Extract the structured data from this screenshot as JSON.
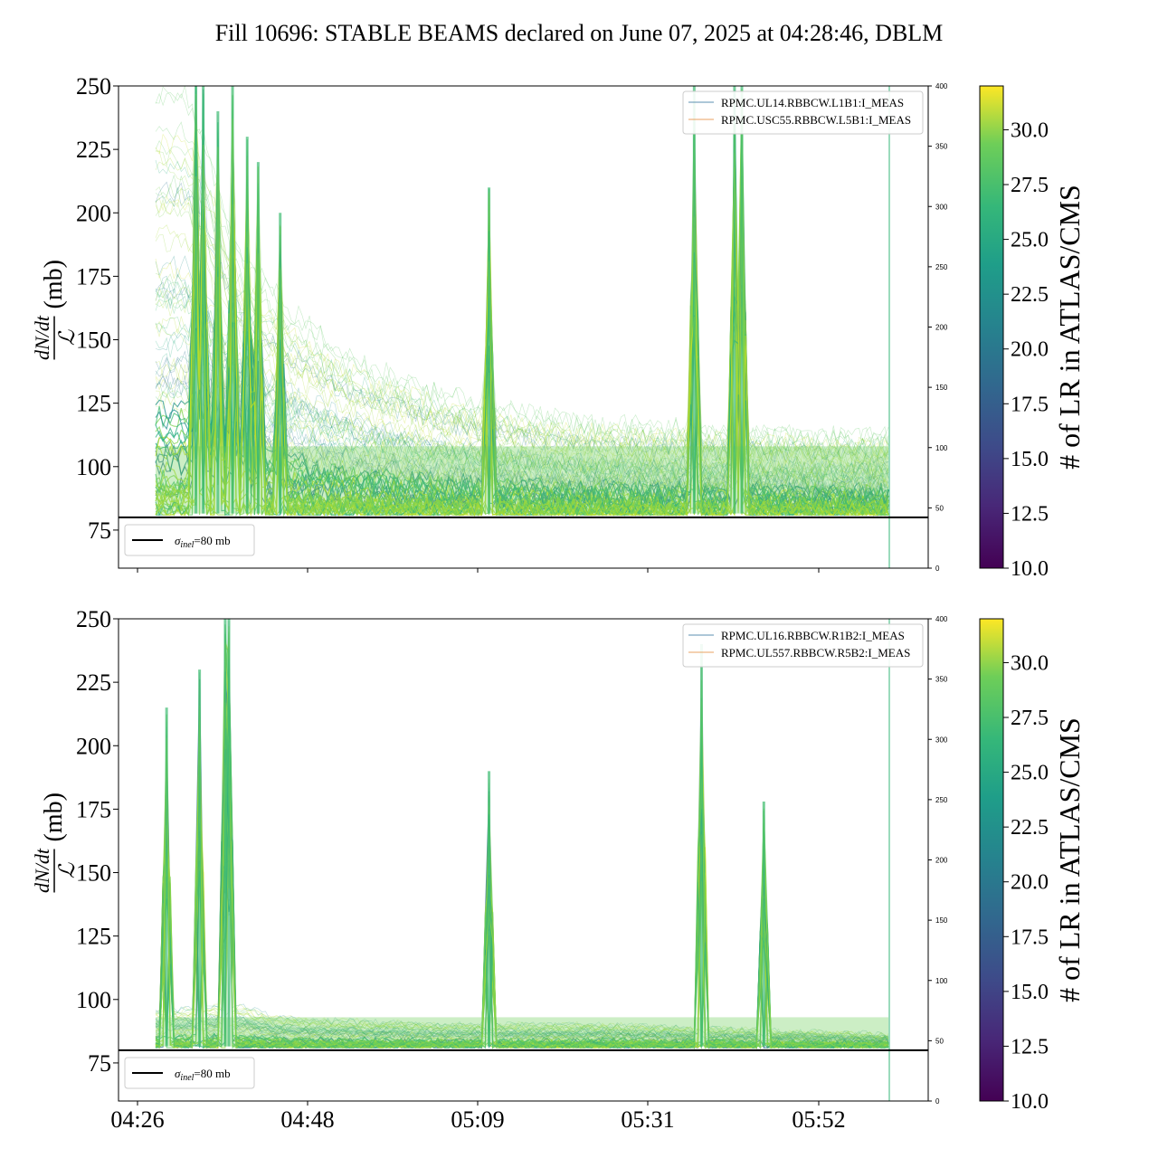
{
  "title": "Fill 10696: STABLE BEAMS declared on June 07, 2025 at 04:28:46, DBLM",
  "chart_data": [
    {
      "type": "line",
      "panel": "top",
      "ylabel_num": "dN/dt",
      "ylabel_den": "ℒ",
      "ylabel_unit": "(mb)",
      "ylim": [
        60,
        250
      ],
      "yticks": [
        75,
        100,
        125,
        150,
        175,
        200,
        225,
        250
      ],
      "secondary_ylim": [
        0,
        400
      ],
      "secondary_yticks": [
        0,
        50,
        100,
        150,
        200,
        250,
        300,
        350,
        400
      ],
      "xticks": [
        "04:26",
        "04:48",
        "05:09",
        "05:31",
        "05:52"
      ],
      "show_xtick_labels": false,
      "reference_line": {
        "value": 80,
        "label": "σinel=80 mb",
        "label_main": "σ",
        "label_sub": "inel",
        "label_rest": "=80 mb"
      },
      "legend": [
        "RPMC.UL14.RBBCW.L1B1:I_MEAS",
        "RPMC.USC55.RBBCW.L5B1:I_MEAS"
      ],
      "colorbar": {
        "label": "# of LR in ATLAS/CMS",
        "range": [
          10.0,
          32.0
        ],
        "ticks": [
          "10.0",
          "12.5",
          "15.0",
          "17.5",
          "20.0",
          "22.5",
          "25.0",
          "27.5",
          "30.0"
        ]
      },
      "envelope": [
        [
          0,
          250
        ],
        [
          2,
          250
        ],
        [
          4,
          250
        ],
        [
          6,
          238
        ],
        [
          8,
          220
        ],
        [
          10,
          198
        ],
        [
          12,
          183
        ],
        [
          14,
          178
        ],
        [
          16,
          172
        ],
        [
          18,
          165
        ],
        [
          20,
          160
        ],
        [
          22,
          155
        ],
        [
          24,
          151
        ],
        [
          26,
          147
        ],
        [
          28,
          143
        ],
        [
          30,
          140
        ],
        [
          32,
          138
        ],
        [
          34,
          136
        ],
        [
          36,
          133
        ],
        [
          38,
          131
        ],
        [
          40,
          129
        ],
        [
          42,
          128
        ],
        [
          44,
          126
        ],
        [
          46,
          124
        ],
        [
          48,
          123
        ],
        [
          50,
          122
        ],
        [
          52,
          121
        ],
        [
          54,
          120
        ],
        [
          56,
          119
        ],
        [
          58,
          119
        ],
        [
          60,
          118
        ],
        [
          62,
          118
        ],
        [
          64,
          117
        ],
        [
          66,
          117
        ],
        [
          68,
          116
        ],
        [
          70,
          116
        ],
        [
          72,
          116
        ],
        [
          74,
          115
        ],
        [
          76,
          115
        ],
        [
          78,
          115
        ],
        [
          80,
          114
        ],
        [
          82,
          114
        ],
        [
          84,
          114
        ],
        [
          86,
          114
        ],
        [
          88,
          114
        ],
        [
          90,
          113
        ],
        [
          92,
          113
        ],
        [
          94,
          113
        ],
        [
          96,
          113
        ],
        [
          98,
          113
        ],
        [
          100,
          113
        ]
      ],
      "spikes": [
        [
          5.5,
          250
        ],
        [
          6.5,
          250
        ],
        [
          8.5,
          240
        ],
        [
          10.5,
          250
        ],
        [
          12.5,
          230
        ],
        [
          14,
          220
        ],
        [
          17,
          200
        ],
        [
          45.5,
          210
        ],
        [
          73.5,
          250
        ],
        [
          79,
          250
        ],
        [
          80,
          250
        ]
      ]
    },
    {
      "type": "line",
      "panel": "bottom",
      "ylabel_num": "dN/dt",
      "ylabel_den": "ℒ",
      "ylabel_unit": "(mb)",
      "ylim": [
        60,
        250
      ],
      "yticks": [
        75,
        100,
        125,
        150,
        175,
        200,
        225,
        250
      ],
      "secondary_ylim": [
        0,
        400
      ],
      "secondary_yticks": [
        0,
        50,
        100,
        150,
        200,
        250,
        300,
        350,
        400
      ],
      "xticks": [
        "04:26",
        "04:48",
        "05:09",
        "05:31",
        "05:52"
      ],
      "show_xtick_labels": true,
      "reference_line": {
        "value": 80,
        "label": "σinel=80 mb",
        "label_main": "σ",
        "label_sub": "inel",
        "label_rest": "=80 mb"
      },
      "legend": [
        "RPMC.UL16.RBBCW.R1B2:I_MEAS",
        "RPMC.UL557.RBBCW.R5B2:I_MEAS"
      ],
      "colorbar": {
        "label": "# of LR in ATLAS/CMS",
        "range": [
          10.0,
          32.0
        ],
        "ticks": [
          "10.0",
          "12.5",
          "15.0",
          "17.5",
          "20.0",
          "22.5",
          "25.0",
          "27.5",
          "30.0"
        ]
      },
      "envelope": [
        [
          0,
          96
        ],
        [
          4,
          96
        ],
        [
          8,
          97
        ],
        [
          12,
          97
        ],
        [
          16,
          93
        ],
        [
          20,
          92
        ],
        [
          30,
          91
        ],
        [
          40,
          90
        ],
        [
          50,
          90
        ],
        [
          60,
          90
        ],
        [
          70,
          89
        ],
        [
          80,
          88
        ],
        [
          90,
          87
        ],
        [
          100,
          86
        ]
      ],
      "spikes": [
        [
          1.5,
          215
        ],
        [
          6,
          230
        ],
        [
          9.5,
          250
        ],
        [
          10,
          250
        ],
        [
          45.5,
          190
        ],
        [
          74.5,
          240
        ],
        [
          83,
          178
        ]
      ]
    }
  ]
}
